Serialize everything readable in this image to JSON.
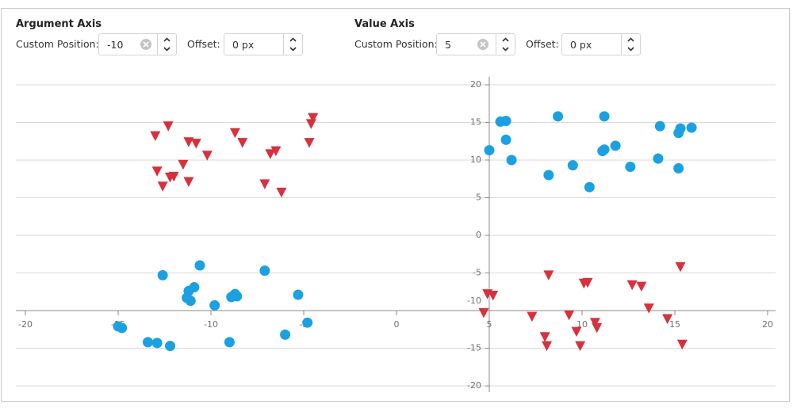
{
  "controls": {
    "argument_axis": {
      "title": "Argument Axis",
      "custom_position_label": "Custom Position:",
      "custom_position": -10,
      "offset_label": "Offset:",
      "offset": "0 px"
    },
    "value_axis": {
      "title": "Value Axis",
      "custom_position_label": "Custom Position:",
      "custom_position": 5,
      "offset_label": "Offset:",
      "offset": "0 px"
    }
  },
  "chart_data": {
    "type": "scatter",
    "xlim": [
      -20,
      20
    ],
    "ylim": [
      -20,
      20
    ],
    "xticks": [
      -20,
      -15,
      -10,
      -5,
      0,
      5,
      10,
      15,
      20
    ],
    "yticks": [
      -20,
      -15,
      -10,
      -5,
      0,
      5,
      10,
      15,
      20
    ],
    "ygrid": true,
    "series": [
      {
        "color": "#1ba1e2",
        "marker": "circle",
        "x": [
          -12.6,
          -10.6,
          -7.1,
          -10.9,
          -11.2,
          -11.3,
          -11.1,
          -9.8,
          -8.9,
          -8.7,
          -8.6,
          -5.3,
          -4.8,
          -15.0,
          -14.8,
          -13.4,
          -12.9,
          -12.2,
          -9.0,
          -6.0
        ],
        "values": [
          -5.3,
          -4.0,
          -4.7,
          -6.9,
          -7.4,
          -8.3,
          -8.7,
          -9.3,
          -8.2,
          -7.8,
          -8.1,
          -7.9,
          -11.6,
          -12.1,
          -12.3,
          -14.2,
          -14.3,
          -14.7,
          -14.2,
          -13.2
        ]
      },
      {
        "color": "#1ba1e2",
        "marker": "circle",
        "x": [
          5.0,
          5.6,
          5.9,
          5.9,
          6.2,
          8.7,
          8.2,
          9.5,
          10.4,
          11.2,
          11.1,
          11.2,
          11.8,
          12.6,
          14.1,
          14.2,
          15.2,
          15.3,
          15.9,
          15.2
        ],
        "values": [
          11.3,
          15.1,
          15.2,
          12.7,
          10.0,
          15.8,
          8.0,
          9.3,
          6.4,
          15.8,
          11.2,
          11.4,
          11.9,
          9.1,
          10.2,
          14.5,
          13.6,
          14.2,
          14.3,
          8.9
        ]
      },
      {
        "color": "#d7313e",
        "marker": "triangle-down",
        "x": [
          -13.0,
          -12.3,
          -12.9,
          -12.6,
          -12.2,
          -12.0,
          -11.5,
          -11.2,
          -11.2,
          -10.8,
          -10.2,
          -8.7,
          -8.3,
          -7.1,
          -6.8,
          -6.5,
          -6.2,
          -4.7,
          -4.6,
          -4.5
        ],
        "values": [
          13.2,
          14.5,
          8.5,
          6.5,
          7.7,
          7.8,
          9.4,
          7.1,
          12.4,
          12.2,
          10.6,
          13.6,
          12.3,
          6.8,
          10.8,
          11.2,
          5.7,
          12.3,
          14.8,
          15.6
        ]
      },
      {
        "color": "#d7313e",
        "marker": "triangle-down",
        "x": [
          8.2,
          4.7,
          4.9,
          5.2,
          7.3,
          8.0,
          8.1,
          9.3,
          9.7,
          9.9,
          10.1,
          10.3,
          10.7,
          10.8,
          12.7,
          13.2,
          13.6,
          14.6,
          15.3,
          15.4
        ],
        "values": [
          -5.3,
          -10.3,
          -7.8,
          -8.0,
          -10.8,
          -13.5,
          -14.7,
          -10.6,
          -12.8,
          -14.7,
          -6.4,
          -6.3,
          -11.6,
          -12.3,
          -6.6,
          -6.8,
          -9.7,
          -11.1,
          -4.2,
          -14.5
        ]
      }
    ]
  }
}
